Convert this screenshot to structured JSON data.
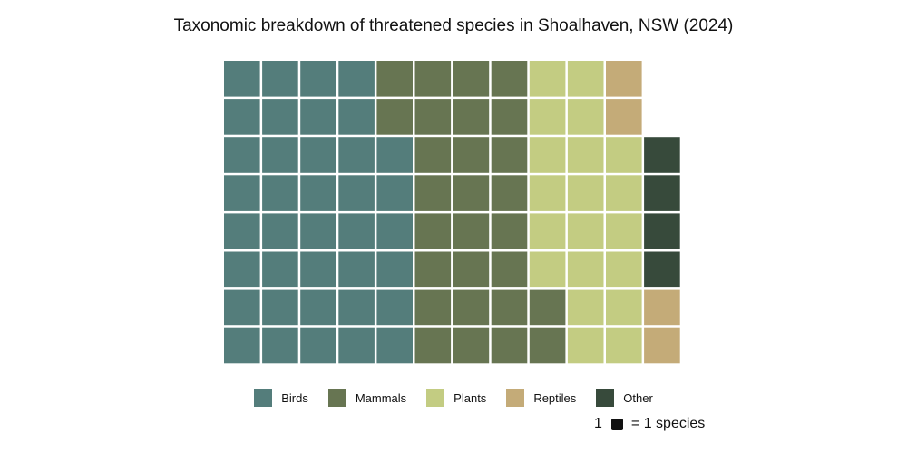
{
  "chart_data": {
    "type": "waffle",
    "title": "Taxonomic breakdown of threatened species in Shoalhaven, NSW (2024)",
    "columns": 12,
    "rows": 8,
    "series": [
      {
        "name": "Birds",
        "value": 38,
        "color": "#547d7b"
      },
      {
        "name": "Mammals",
        "value": 28,
        "color": "#677552"
      },
      {
        "name": "Plants",
        "value": 20,
        "color": "#c3cc82"
      },
      {
        "name": "Reptiles",
        "value": 4,
        "color": "#c4ab78"
      },
      {
        "name": "Other",
        "value": 4,
        "color": "#374a3b"
      }
    ],
    "legend_position": "bottom-center",
    "unit_note": {
      "count": "1",
      "text": "= 1 species"
    }
  }
}
